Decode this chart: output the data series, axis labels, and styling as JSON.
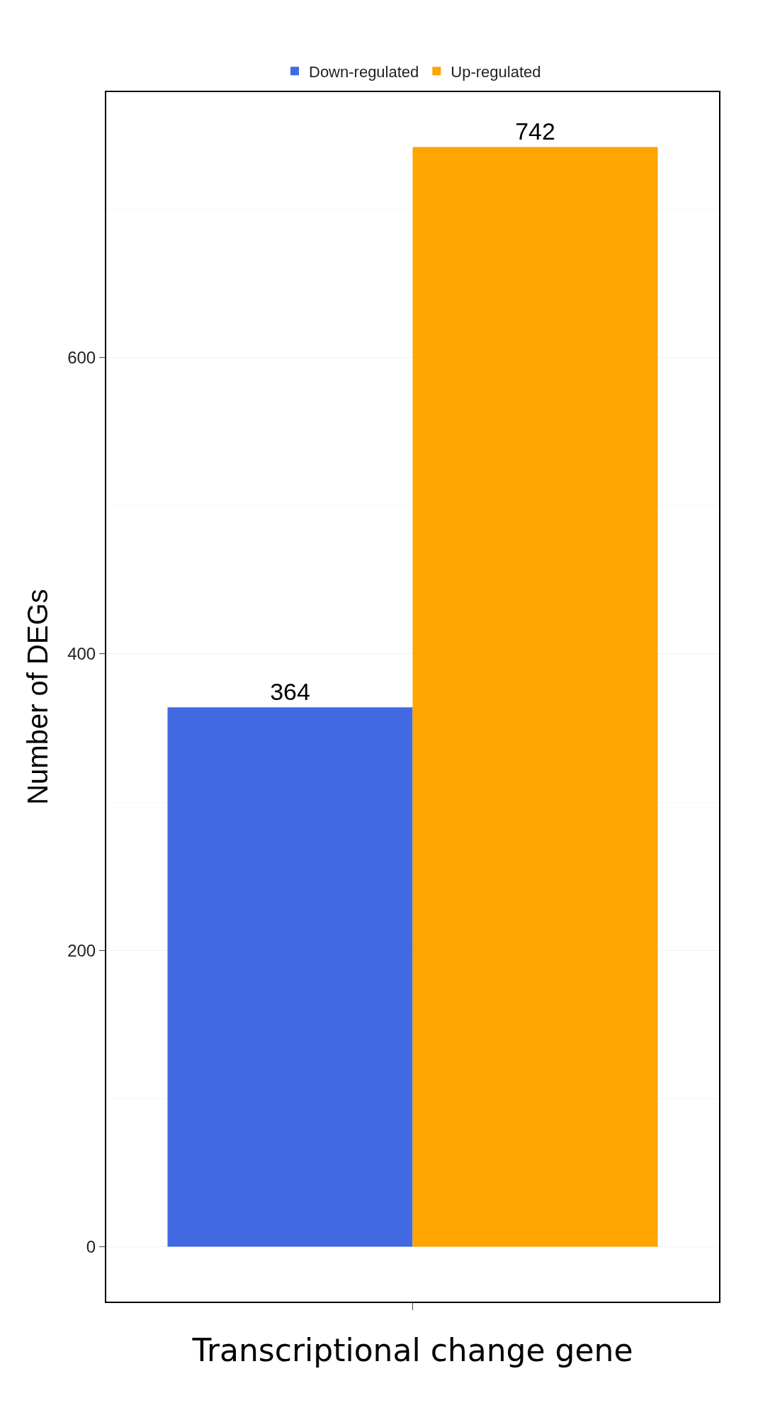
{
  "chart_data": {
    "type": "bar",
    "xlabel": "Transcriptional change gene",
    "ylabel": "Number of DEGs",
    "categories": [
      null
    ],
    "series": [
      {
        "name": "Down-regulated",
        "color": "#4169e1",
        "values": [
          364
        ]
      },
      {
        "name": "Up-regulated",
        "color": "#ffa500",
        "values": [
          742
        ]
      }
    ],
    "ylim": [
      -37,
      779
    ],
    "yticks": [
      0,
      200,
      400,
      600
    ],
    "grid": true,
    "legend": "top",
    "data_labels": true
  }
}
